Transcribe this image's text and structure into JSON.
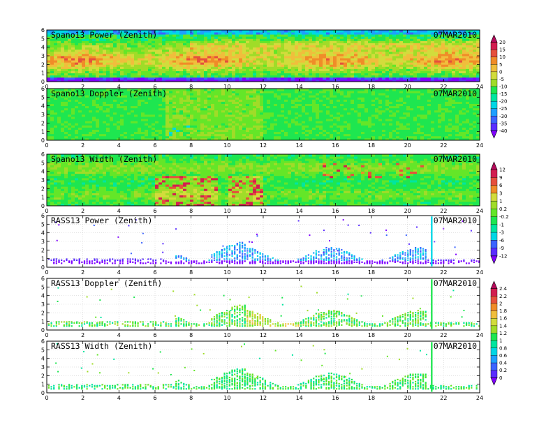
{
  "figure": {
    "panels": [
      {
        "title": "Spano13 Power (Zenith)",
        "date": "07MAR2010",
        "kind": "power"
      },
      {
        "title": "Spano13 Doppler (Zenith)",
        "date": "07MAR2010",
        "kind": "doppler"
      },
      {
        "title": "Spano13 Width (Zenith)",
        "date": "07MAR2010",
        "kind": "width"
      },
      {
        "title": "RASS13 Power (Zenith)",
        "date": "07MAR2010",
        "kind": "rasspower"
      },
      {
        "title": "RASS13 Doppler (Zenith)",
        "date": "07MAR2010",
        "kind": "rassdoppler"
      },
      {
        "title": "RASS13 Width (Zenith)",
        "date": "07MAR2010",
        "kind": "rasswidth"
      }
    ],
    "colorbars": [
      {
        "labels": [
          "20",
          "15",
          "10",
          "5",
          "0",
          "-5",
          "-10",
          "-15",
          "-20",
          "-25",
          "-30",
          "-35",
          "-40"
        ]
      },
      {
        "labels": [
          "12",
          "9",
          "6",
          "3",
          "1",
          "0.2",
          "-0.2",
          "-1",
          "-3",
          "-6",
          "-9",
          "-12"
        ]
      },
      {
        "labels": [
          "2.4",
          "2.2",
          "2",
          "1.8",
          "1.6",
          "1.4",
          "1.2",
          "1",
          "0.8",
          "0.6",
          "0.4",
          "0.2",
          "0"
        ]
      }
    ]
  },
  "chart_data": {
    "type": "heatmap",
    "x_ticks": [
      "0",
      "2",
      "4",
      "6",
      "8",
      "10",
      "12",
      "14",
      "16",
      "18",
      "20",
      "22",
      "24"
    ],
    "y_ticks": [
      "0",
      "1",
      "2",
      "3",
      "4",
      "5",
      "6"
    ],
    "xlim": [
      0,
      24
    ],
    "ylim": [
      0,
      6
    ],
    "colors": [
      "#7f00ff",
      "#5a2dff",
      "#3c64ff",
      "#1ea0ff",
      "#00d7e6",
      "#00e6a0",
      "#1ee650",
      "#64e628",
      "#a0dc28",
      "#d2dc3c",
      "#f0be3c",
      "#f08c28",
      "#e6503c",
      "#d21e50",
      "#b40a5a"
    ]
  }
}
